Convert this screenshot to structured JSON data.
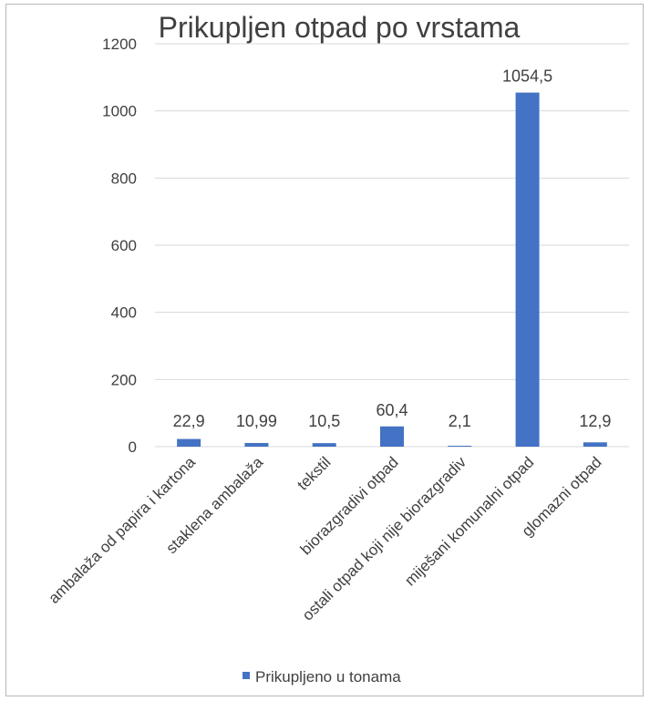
{
  "chart_data": {
    "type": "bar",
    "title": "Prikupljen otpad po vrstama",
    "xlabel": "",
    "ylabel": "",
    "categories": [
      "ambalaža od papira i kartona",
      "staklena ambalaža",
      "tekstil",
      "biorazgradivi otpad",
      "ostali otpad koji nije biorazgradiv",
      "miješani komunalni otpad",
      "glomazni otpad"
    ],
    "series": [
      {
        "name": "Prikupljeno u tonama",
        "values": [
          22.9,
          10.99,
          10.5,
          60.4,
          2.1,
          1054.5,
          12.9
        ],
        "labels": [
          "22,9",
          "10,99",
          "10,5",
          "60,4",
          "2,1",
          "1054,5",
          "12,9"
        ],
        "color": "#4472c4"
      }
    ],
    "ylim": [
      0,
      1200
    ],
    "yticks": [
      0,
      200,
      400,
      600,
      800,
      1000,
      1200
    ],
    "grid": true,
    "legend_position": "bottom"
  }
}
